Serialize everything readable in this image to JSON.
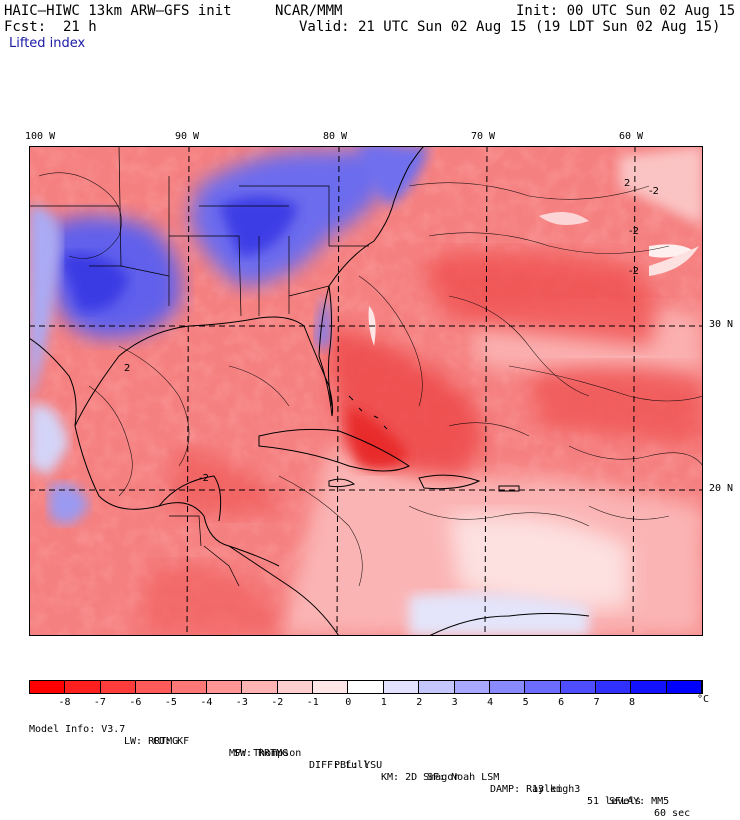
{
  "header": {
    "model": "HAIC–HIWC 13km ARW–GFS init",
    "org": "NCAR/MMM",
    "init": "Init: 00 UTC Sun 02 Aug 15",
    "fcst_label": "Fcst:",
    "fcst_value": "21 h",
    "valid": "Valid: 21 UTC Sun 02 Aug 15 (19 LDT Sun 02 Aug 15)",
    "field": "Lifted index"
  },
  "map": {
    "lon_labels": [
      "100 W",
      "90 W",
      "80 W",
      "70 W",
      "60 W"
    ],
    "lat_labels": [
      "30 N",
      "20 N"
    ],
    "colors": {
      "strong_red": "#ee3838",
      "mid_red": "#f46a6a",
      "light_red": "#fa9c9c",
      "pale_red": "#fdd0d0",
      "pale_blue": "#d8d8fa",
      "mid_blue": "#7c7cf2",
      "strong_blue": "#3c3cea",
      "line": "#000000"
    },
    "contour_labels": [
      "2",
      "-2",
      "-2",
      "-2",
      "2",
      "-2"
    ]
  },
  "colorbar": {
    "labels": [
      "-8",
      "-7",
      "-6",
      "-5",
      "-4",
      "-3",
      "-2",
      "-1",
      "0",
      "1",
      "2",
      "3",
      "4",
      "5",
      "6",
      "7",
      "8"
    ],
    "unit": "°C",
    "colors": [
      "#ff0000",
      "#ff1f1f",
      "#ff3c3c",
      "#ff5a5a",
      "#ff7777",
      "#ff9595",
      "#ffb3b3",
      "#ffcfcf",
      "#ffe6e6",
      "#ffffff",
      "#e2e2ff",
      "#c6c6ff",
      "#a8a8ff",
      "#8a8aff",
      "#6c6cff",
      "#4e4eff",
      "#3030ff",
      "#1212ff",
      "#0000ff"
    ]
  },
  "footer": {
    "line1": [
      "Model Info: V3.7",
      "CU: KF",
      "MP: Thompson",
      "PBL: YSU",
      "SF: Noah LSM",
      "13 km",
      "51 levels",
      "60 sec"
    ],
    "line2": [
      "LW: RRTMG",
      "SW: RRTMG",
      "DIFF: full",
      "KM: 2D Smagor",
      "DAMP: Rayleigh3",
      "SFLAY: MM5"
    ]
  }
}
